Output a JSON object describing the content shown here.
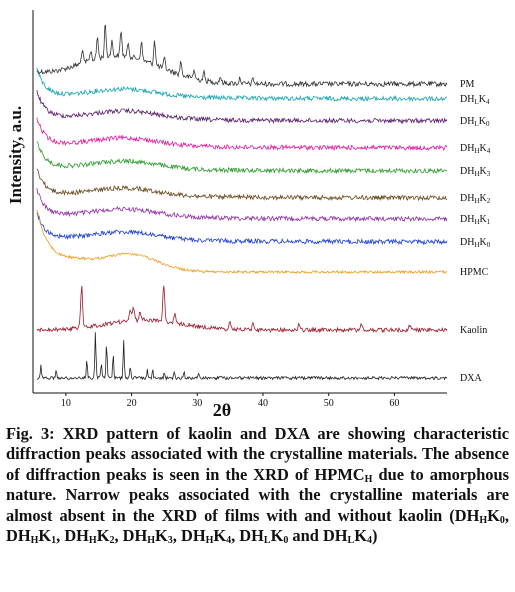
{
  "chart_data": {
    "type": "line",
    "xlabel": "2θ",
    "ylabel": "Intensity, a.u.",
    "xlim": [
      5,
      68
    ],
    "xticks": [
      10,
      20,
      30,
      40,
      50,
      60
    ],
    "grid": false,
    "legend": "labels at right end of each curve",
    "series": [
      {
        "name": "PM",
        "label": {
          "main": "PM",
          "sub": ""
        },
        "color": "#333333",
        "offset": 84,
        "pattern": "pm"
      },
      {
        "name": "DHLK4",
        "label": {
          "main": "DH",
          "sub": "L",
          "main2": "K",
          "sub2": "4"
        },
        "color": "#14a5b0",
        "offset": 99,
        "pattern": "amorph"
      },
      {
        "name": "DHLK0",
        "label": {
          "main": "DH",
          "sub": "L",
          "main2": "K",
          "sub2": "0"
        },
        "color": "#5b1f6b",
        "offset": 121,
        "pattern": "amorph"
      },
      {
        "name": "DHHK4",
        "label": {
          "main": "DH",
          "sub": "H",
          "main2": "K",
          "sub2": "4"
        },
        "color": "#e21a9e",
        "offset": 148,
        "pattern": "amorph"
      },
      {
        "name": "DHHK3",
        "label": {
          "main": "DH",
          "sub": "H",
          "main2": "K",
          "sub2": "3"
        },
        "color": "#2e9b2e",
        "offset": 171,
        "pattern": "amorph"
      },
      {
        "name": "DHHK2",
        "label": {
          "main": "DH",
          "sub": "H",
          "main2": "K",
          "sub2": "2"
        },
        "color": "#6b4a1f",
        "offset": 198,
        "pattern": "amorph"
      },
      {
        "name": "DHHK1",
        "label": {
          "main": "DH",
          "sub": "H",
          "main2": "K",
          "sub2": "1"
        },
        "color": "#8e2fa6",
        "offset": 219,
        "pattern": "amorph"
      },
      {
        "name": "DHHK0",
        "label": {
          "main": "DH",
          "sub": "H",
          "main2": "K",
          "sub2": "0"
        },
        "color": "#1f3fd4",
        "offset": 242,
        "pattern": "amorph"
      },
      {
        "name": "HPMC",
        "label": {
          "main": "HPMC",
          "sub": ""
        },
        "color": "#f39a1a",
        "offset": 272,
        "pattern": "hpmc"
      },
      {
        "name": "Kaolin",
        "label": {
          "main": "Kaolin",
          "sub": ""
        },
        "color": "#9b1b2e",
        "offset": 330,
        "pattern": "kaolin"
      },
      {
        "name": "DXA",
        "label": {
          "main": "DXA",
          "sub": ""
        },
        "color": "#222222",
        "offset": 378,
        "pattern": "dxa"
      }
    ]
  },
  "caption": {
    "segments": [
      {
        "t": "Fig. 3: XRD pattern of kaolin and DXA are showing characteristic diffraction peaks associated with the crystalline materials. The absence of diffraction peaks is seen in the XRD of HPMC"
      },
      {
        "sub": "H"
      },
      {
        "t": " due to amorphous nature. Narrow peaks associated with the crystalline materials are almost absent in the XRD of films with and without kaolin (DH"
      },
      {
        "sub": "H"
      },
      {
        "t": "K"
      },
      {
        "sub": "0"
      },
      {
        "t": ", DH"
      },
      {
        "sub": "H"
      },
      {
        "t": "K"
      },
      {
        "sub": "1"
      },
      {
        "t": ", DH"
      },
      {
        "sub": "H"
      },
      {
        "t": "K"
      },
      {
        "sub": "2"
      },
      {
        "t": ", DH"
      },
      {
        "sub": "H"
      },
      {
        "t": "K"
      },
      {
        "sub": "3"
      },
      {
        "t": ", DH"
      },
      {
        "sub": "H"
      },
      {
        "t": "K"
      },
      {
        "sub": "4"
      },
      {
        "t": ", DH"
      },
      {
        "sub": "L"
      },
      {
        "t": "K"
      },
      {
        "sub": "0"
      },
      {
        "t": " and DH"
      },
      {
        "sub": "L"
      },
      {
        "t": "K"
      },
      {
        "sub": "4"
      },
      {
        "t": ")"
      }
    ]
  }
}
